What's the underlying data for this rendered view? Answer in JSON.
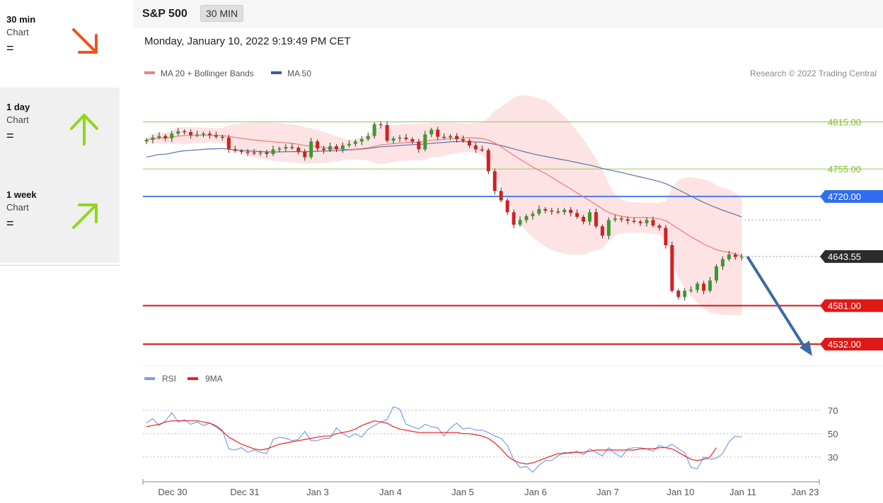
{
  "sidebar": {
    "items": [
      {
        "name": "30 min",
        "sub": "Chart",
        "status": "=",
        "arrow": "down-right",
        "color": "#f0521c"
      },
      {
        "name": "1 day",
        "sub": "Chart",
        "status": "=",
        "arrow": "up",
        "color": "#8fd818"
      },
      {
        "name": "1 week",
        "sub": "Chart",
        "status": "=",
        "arrow": "up-right",
        "color": "#8fd818"
      }
    ]
  },
  "header": {
    "symbol": "S&P 500",
    "timeframe": "30 MIN"
  },
  "datetime": "Monday, January 10, 2022 9:19:49 PM CET",
  "chart_data": {
    "type": "candlestick",
    "legend": [
      {
        "label": "MA 20 + Bollinger Bands",
        "color": "#f08080"
      },
      {
        "label": "MA 50",
        "color": "#3a5a9a"
      }
    ],
    "copyright": "Research © 2022 Trading Central",
    "ylim": [
      4515,
      4855
    ],
    "x_labels": [
      "Dec 30",
      "Dec 31",
      "Jan 3",
      "Jan 4",
      "Jan 5",
      "Jan 6",
      "Jan 7",
      "Jan 10",
      "Jan 11",
      "Jan 23"
    ],
    "levels": [
      {
        "value": 4815.0,
        "label": "4815.00",
        "color": "#9fd06a",
        "text_color": "#7cbd27",
        "badge": false
      },
      {
        "value": 4755.0,
        "label": "4755.00",
        "color": "#9fd06a",
        "text_color": "#7cbd27",
        "badge": false
      },
      {
        "value": 4720.0,
        "label": "4720.00",
        "color": "#4d7ce8",
        "text_color": "#ffffff",
        "badge": true,
        "badge_color": "#2f6df0"
      },
      {
        "value": 4643.55,
        "label": "4643.55",
        "color": "#999999",
        "text_color": "#ffffff",
        "badge": true,
        "badge_color": "#2b2b2b",
        "dotted": true
      },
      {
        "value": 4581.0,
        "label": "4581.00",
        "color": "#e01010",
        "text_color": "#ffffff",
        "badge": true,
        "badge_color": "#e01818"
      },
      {
        "value": 4532.0,
        "label": "4532.00",
        "color": "#e01010",
        "text_color": "#ffffff",
        "badge": true,
        "badge_color": "#e01818"
      }
    ],
    "ma50_end": 4690,
    "close": [
      4792,
      4795,
      4797,
      4794,
      4800,
      4803,
      4802,
      4798,
      4799,
      4800,
      4798,
      4796,
      4795,
      4780,
      4778,
      4777,
      4776,
      4775,
      4776,
      4774,
      4780,
      4781,
      4783,
      4782,
      4777,
      4770,
      4790,
      4781,
      4779,
      4784,
      4780,
      4785,
      4787,
      4790,
      4793,
      4797,
      4812,
      4811,
      4791,
      4794,
      4795,
      4793,
      4790,
      4780,
      4799,
      4805,
      4796,
      4795,
      4797,
      4793,
      4791,
      4785,
      4780,
      4779,
      4752,
      4727,
      4715,
      4700,
      4684,
      4690,
      4695,
      4698,
      4704,
      4702,
      4701,
      4700,
      4703,
      4699,
      4694,
      4688,
      4700,
      4682,
      4670,
      4690,
      4692,
      4691,
      4689,
      4688,
      4686,
      4690,
      4683,
      4680,
      4658,
      4600,
      4592,
      4600,
      4601,
      4609,
      4600,
      4613,
      4631,
      4640,
      4646,
      4643,
      4643.55
    ],
    "rsi": {
      "ylim": [
        10,
        85
      ],
      "ticks": [
        70,
        50,
        30
      ],
      "legend": [
        {
          "label": "RSI",
          "color": "#7b9ee8"
        },
        {
          "label": "9MA",
          "color": "#f02020"
        }
      ],
      "rsi": [
        59,
        63,
        57,
        61,
        68,
        60,
        62,
        58,
        60,
        57,
        59,
        57,
        53,
        37,
        36,
        38,
        34,
        36,
        34,
        33,
        45,
        47,
        46,
        44,
        45,
        52,
        44,
        44,
        46,
        46,
        55,
        50,
        47,
        50,
        47,
        54,
        57,
        60,
        62,
        73,
        71,
        58,
        56,
        54,
        58,
        56,
        55,
        48,
        55,
        59,
        54,
        55,
        53,
        53,
        51,
        48,
        46,
        40,
        28,
        21,
        22,
        17,
        23,
        27,
        27,
        31,
        34,
        33,
        35,
        32,
        37,
        34,
        31,
        38,
        33,
        30,
        37,
        38,
        38,
        37,
        35,
        40,
        38,
        41,
        37,
        34,
        21,
        20,
        30,
        28,
        29,
        33,
        43,
        48,
        47
      ],
      "ma": [
        56,
        57,
        58,
        60,
        61,
        61,
        61,
        61,
        61,
        60,
        59,
        56,
        52,
        47,
        44,
        41,
        39,
        37,
        36,
        37,
        39,
        41,
        42,
        43,
        44,
        45,
        46,
        47,
        48,
        48,
        50,
        51,
        52,
        54,
        57,
        59,
        61,
        60,
        59,
        56,
        54,
        53,
        52,
        51,
        51,
        51,
        51,
        51,
        51,
        51,
        50,
        50,
        49,
        48,
        46,
        42,
        37,
        31,
        27,
        25,
        24,
        25,
        27,
        29,
        31,
        33,
        33,
        34,
        34,
        34,
        35,
        36,
        36,
        36,
        36,
        36,
        36,
        36,
        37,
        37,
        37,
        38,
        38,
        37,
        34,
        31,
        28,
        27,
        28,
        30,
        38
      ]
    }
  }
}
